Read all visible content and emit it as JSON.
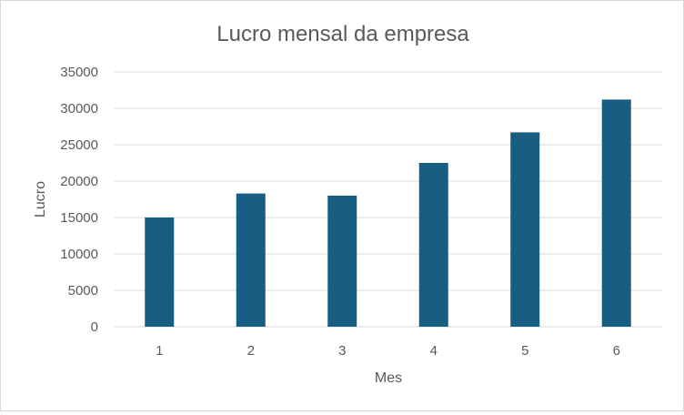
{
  "chart_data": {
    "type": "bar",
    "title": "Lucro mensal da empresa",
    "xlabel": "Mes",
    "ylabel": "Lucro",
    "categories": [
      "1",
      "2",
      "3",
      "4",
      "5",
      "6"
    ],
    "series": [
      {
        "values": [
          15000,
          18300,
          18000,
          22500,
          26700,
          31200
        ]
      }
    ],
    "ylim": [
      0,
      35000
    ],
    "yticks": [
      "0",
      "5000",
      "10000",
      "15000",
      "20000",
      "25000",
      "30000",
      "35000"
    ],
    "grid": true,
    "legend": "none",
    "colors": {
      "bar": "#175E82",
      "grid": "#d9d9d9",
      "text": "#595959"
    }
  }
}
